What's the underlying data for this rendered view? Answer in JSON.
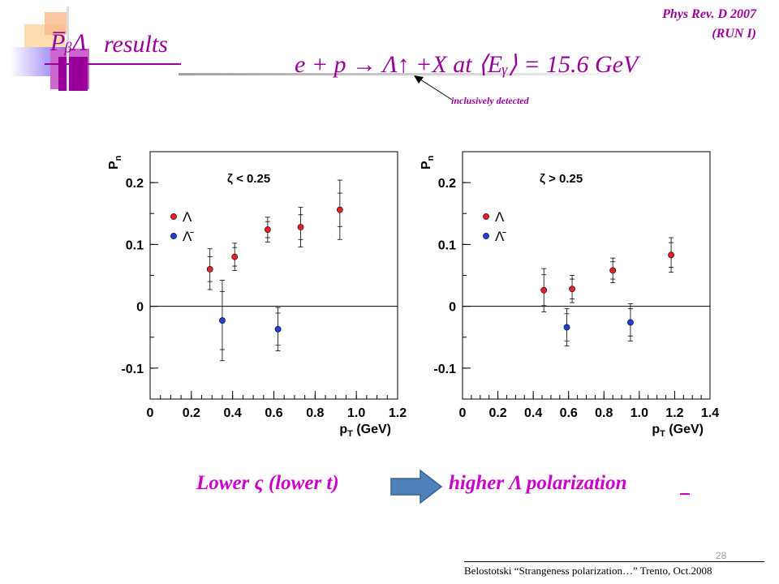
{
  "slide": {
    "title_symbol": "P̅ᵦΛ",
    "title": "results",
    "ref_line1": "Phys Rev. D 2007",
    "ref_line2": "(RUN I)",
    "formula": "e + p → Λ↑ +X  at ⟨Eᵧ⟩ = 15.6 GeV",
    "annotation": "inclusively detected",
    "conclusion_left": "Lower ς (lower t)",
    "conclusion_right": "higher Λ  polarization",
    "page_number": "28",
    "footer": "Belostotski “Strangeness polarization…” Trento, Oct.2008",
    "colors": {
      "title": "#990099",
      "conclusion": "#cc00cc",
      "arrow": "#4f81bd",
      "lambda": "#e8202a",
      "antilambda": "#1f3fd6"
    }
  },
  "chart_data": [
    {
      "type": "scatter",
      "title": "ζ < 0.25",
      "xlabel": "p_T (GeV)",
      "ylabel": "P_n",
      "xlim": [
        0,
        1.2
      ],
      "ylim": [
        -0.15,
        0.25
      ],
      "xticks": [
        "0",
        "0.2",
        "0.4",
        "0.6",
        "0.8",
        "1.0",
        "1.2"
      ],
      "yticks": [
        "-0.1",
        "0",
        "0.1",
        "0.2"
      ],
      "legend": [
        "Λ",
        "Λ̄"
      ],
      "series": [
        {
          "name": "Λ",
          "color": "#e8202a",
          "points": [
            {
              "x": 0.29,
              "y": 0.06,
              "err": 0.02,
              "err_sys": 0.033
            },
            {
              "x": 0.41,
              "y": 0.08,
              "err": 0.015,
              "err_sys": 0.022
            },
            {
              "x": 0.57,
              "y": 0.124,
              "err": 0.013,
              "err_sys": 0.02
            },
            {
              "x": 0.73,
              "y": 0.128,
              "err": 0.02,
              "err_sys": 0.032
            },
            {
              "x": 0.92,
              "y": 0.156,
              "err": 0.027,
              "err_sys": 0.048
            }
          ]
        },
        {
          "name": "Λ̄",
          "color": "#1f3fd6",
          "points": [
            {
              "x": 0.35,
              "y": -0.023,
              "err": 0.047,
              "err_sys": 0.065
            },
            {
              "x": 0.62,
              "y": -0.037,
              "err": 0.026,
              "err_sys": 0.035
            }
          ]
        }
      ]
    },
    {
      "type": "scatter",
      "title": "ζ > 0.25",
      "xlabel": "p_T (GeV)",
      "ylabel": "P_n",
      "xlim": [
        0,
        1.4
      ],
      "ylim": [
        -0.15,
        0.25
      ],
      "xticks": [
        "0",
        "0.2",
        "0.4",
        "0.6",
        "0.8",
        "1.0",
        "1.2",
        "1.4"
      ],
      "yticks": [
        "-0.1",
        "0",
        "0.1",
        "0.2"
      ],
      "legend": [
        "Λ",
        "Λ̄"
      ],
      "series": [
        {
          "name": "Λ",
          "color": "#e8202a",
          "points": [
            {
              "x": 0.46,
              "y": 0.026,
              "err": 0.025,
              "err_sys": 0.035
            },
            {
              "x": 0.62,
              "y": 0.028,
              "err": 0.016,
              "err_sys": 0.022
            },
            {
              "x": 0.85,
              "y": 0.058,
              "err": 0.014,
              "err_sys": 0.02
            },
            {
              "x": 1.18,
              "y": 0.083,
              "err": 0.02,
              "err_sys": 0.028
            }
          ]
        },
        {
          "name": "Λ̄",
          "color": "#1f3fd6",
          "points": [
            {
              "x": 0.59,
              "y": -0.034,
              "err": 0.022,
              "err_sys": 0.03
            },
            {
              "x": 0.95,
              "y": -0.026,
              "err": 0.022,
              "err_sys": 0.03
            }
          ]
        }
      ]
    }
  ]
}
